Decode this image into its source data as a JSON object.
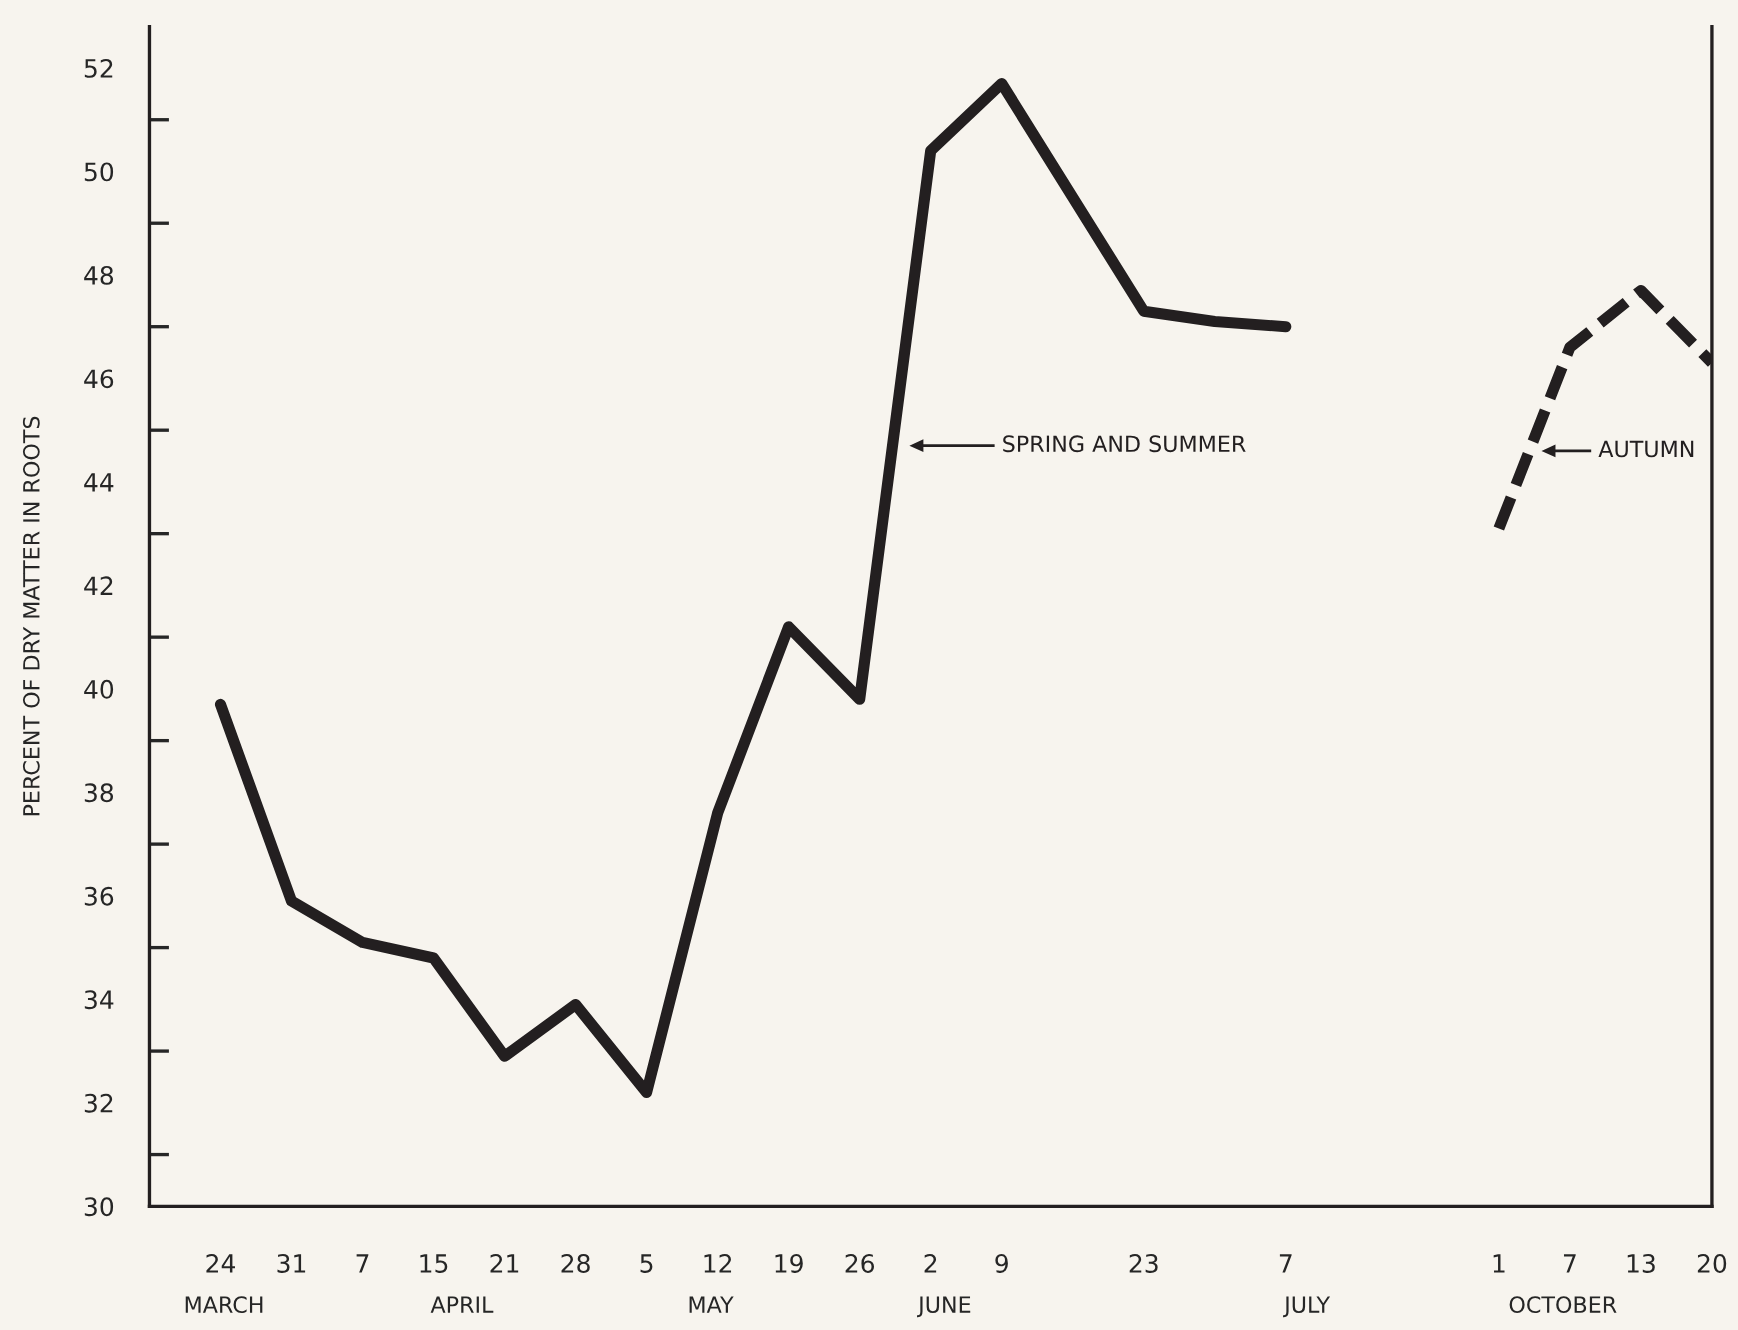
{
  "chart_data": {
    "type": "line",
    "ylabel": "PERCENT OF DRY MATTER IN ROOTS",
    "categories": [
      "24",
      "31",
      "7",
      "15",
      "21",
      "28",
      "5",
      "12",
      "19",
      "26",
      "2",
      "9",
      null,
      "23",
      null,
      "7",
      null,
      null,
      "1",
      "7",
      "13",
      "20"
    ],
    "series": [
      {
        "name": "SPRING AND SUMMER",
        "color": "#231f20",
        "line_style": "solid",
        "values": [
          39.7,
          35.9,
          35.1,
          34.8,
          32.9,
          33.9,
          32.2,
          37.6,
          41.2,
          39.8,
          50.4,
          51.7,
          49.5,
          47.3,
          47.1,
          47.0,
          null,
          null,
          null,
          null,
          null,
          null
        ]
      },
      {
        "name": "AUTUMN",
        "color": "#231f20",
        "line_style": "dashed",
        "values": [
          null,
          null,
          null,
          null,
          null,
          null,
          null,
          null,
          null,
          null,
          null,
          null,
          null,
          null,
          null,
          null,
          null,
          null,
          43.1,
          46.6,
          47.7,
          46.3
        ]
      }
    ],
    "ylim": [
      30,
      52.8
    ],
    "yticks": [
      30,
      {
        "value": 31,
        "label": null
      },
      32,
      {
        "value": 33,
        "label": null
      },
      34,
      {
        "value": 35,
        "label": null
      },
      36,
      {
        "value": 37,
        "label": null
      },
      38,
      {
        "value": 39,
        "label": null
      },
      40,
      {
        "value": 41,
        "label": null
      },
      42,
      {
        "value": 43,
        "label": null
      },
      44,
      {
        "value": 45,
        "label": null
      },
      46,
      {
        "value": 47,
        "label": null
      },
      48,
      {
        "value": 49,
        "label": null
      },
      50,
      {
        "value": 51,
        "label": null
      },
      52
    ],
    "annotations": [
      "MARCH",
      "APRIL",
      "MAY",
      "JUNE",
      "JULY",
      "OCTOBER"
    ],
    "grid": false,
    "legend": "right"
  }
}
